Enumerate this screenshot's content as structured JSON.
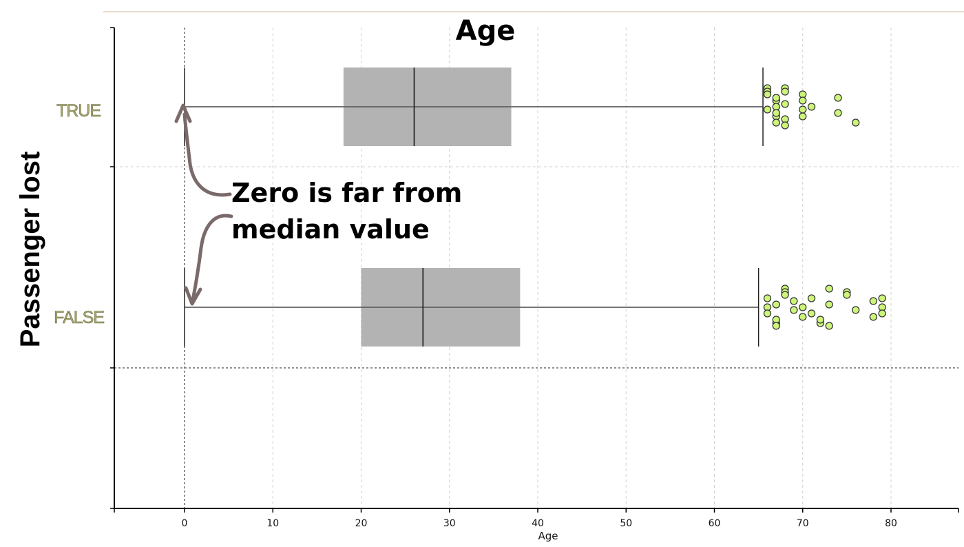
{
  "chart_data": {
    "type": "boxplot",
    "title": "Age",
    "xlabel": "Age",
    "ylabel": "Passenger lost",
    "xlim": [
      -8,
      88
    ],
    "xticks": [
      0,
      10,
      20,
      30,
      40,
      50,
      60,
      70,
      80
    ],
    "categories": [
      "TRUE",
      "FALSE"
    ],
    "boxes": [
      {
        "category": "TRUE",
        "whisker_low": 0,
        "q1": 18,
        "median": 26,
        "q3": 37,
        "whisker_high": 65.5,
        "outliers": [
          66,
          66,
          66,
          66,
          67,
          67,
          67,
          67,
          67,
          67,
          68,
          68,
          68,
          68,
          68,
          70,
          70,
          70,
          70,
          71,
          74,
          74,
          76
        ]
      },
      {
        "category": "FALSE",
        "whisker_low": 0,
        "q1": 20,
        "median": 27,
        "q3": 38,
        "whisker_high": 65,
        "outliers": [
          66,
          66,
          66,
          67,
          67,
          67,
          67,
          68,
          68,
          68,
          69,
          69,
          70,
          70,
          71,
          71,
          72,
          72,
          73,
          73,
          73,
          75,
          75,
          76,
          78,
          78,
          79,
          79,
          79
        ]
      }
    ],
    "annotation": [
      "Zero is far from",
      "median value"
    ],
    "grid": true,
    "colors": {
      "box": "#b3b3b3",
      "outlier_fill": "#ccf57a",
      "outlier_stroke": "#333333",
      "category_label": "#a8a878",
      "arrow": "#7a6a6a",
      "grid": "#d0d0d0"
    }
  }
}
